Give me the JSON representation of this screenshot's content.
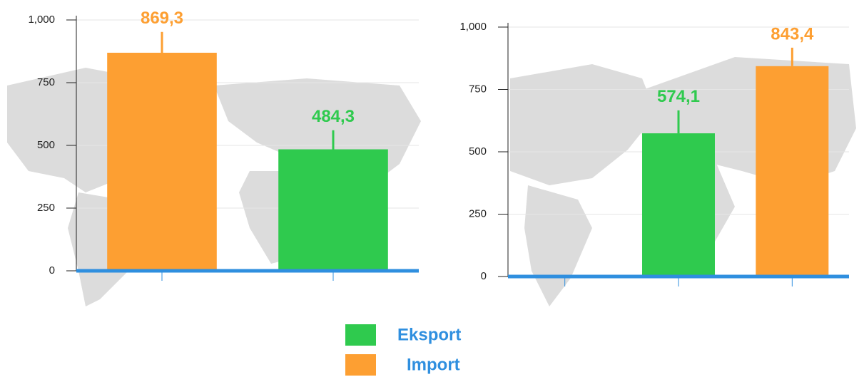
{
  "chart_data": [
    {
      "type": "bar",
      "categories": [
        null,
        null
      ],
      "series": [
        {
          "name": "Eksport",
          "color": "#2fca4e",
          "values": [
            null,
            484.3
          ],
          "value_labels": [
            null,
            "484,3"
          ],
          "errors": [
            null,
            76
          ]
        },
        {
          "name": "Import",
          "color": "#fd9f32",
          "values": [
            869.3,
            null
          ],
          "value_labels": [
            "869,3",
            null
          ],
          "errors": [
            83,
            null
          ]
        }
      ],
      "ylim": [
        0,
        1000
      ],
      "yticks": [
        0,
        250,
        500,
        750,
        {
          "value": 1000,
          "label": "1,000"
        }
      ],
      "grid": true
    },
    {
      "type": "bar",
      "categories": [
        null,
        null,
        null
      ],
      "series": [
        {
          "name": "Eksport",
          "color": "#2fca4e",
          "values": [
            null,
            574.1,
            null
          ],
          "value_labels": [
            null,
            "574,1",
            null
          ],
          "errors": [
            null,
            92,
            null
          ]
        },
        {
          "name": "Import",
          "color": "#fd9f32",
          "values": [
            null,
            null,
            843.4
          ],
          "value_labels": [
            null,
            null,
            "843,4"
          ],
          "errors": [
            null,
            null,
            74
          ]
        }
      ],
      "ylim": [
        0,
        1000
      ],
      "yticks": [
        0,
        250,
        500,
        750,
        {
          "value": 1000,
          "label": "1,000"
        }
      ],
      "grid": true
    }
  ]
}
